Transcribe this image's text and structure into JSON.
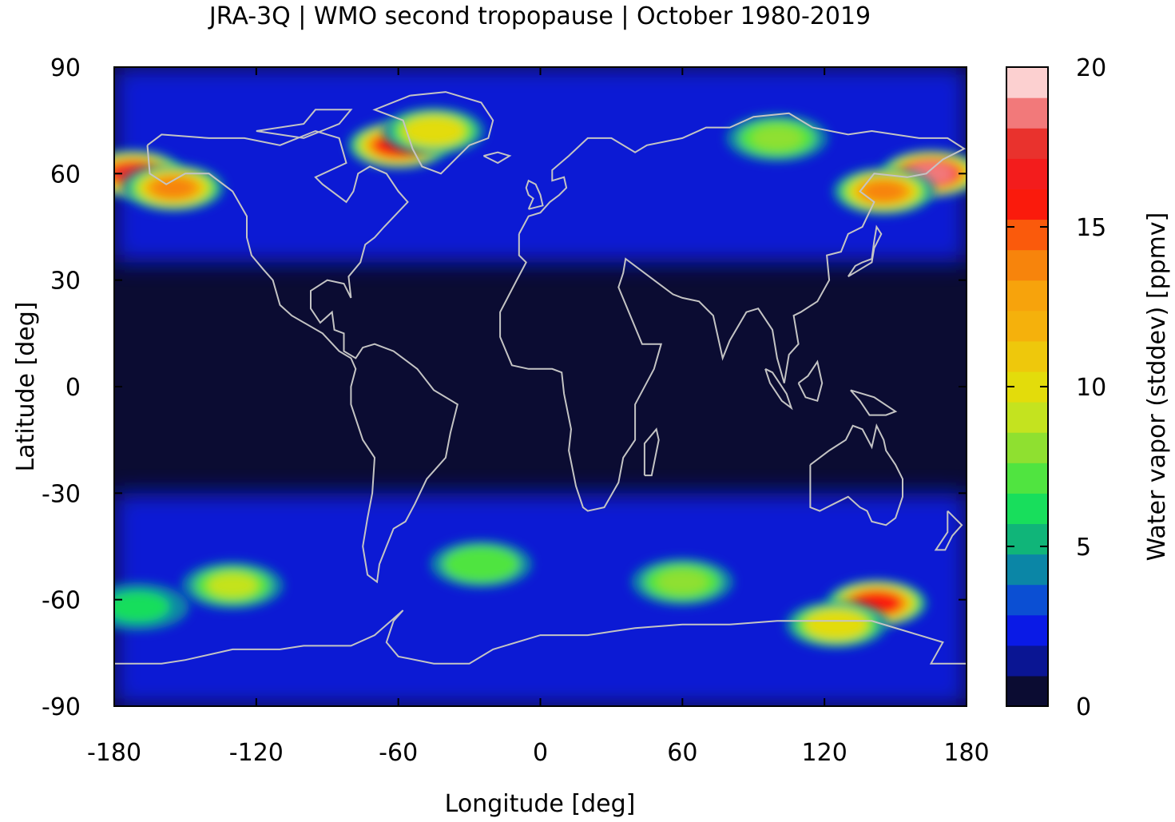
{
  "chart_data": {
    "type": "heatmap",
    "title": "JRA-3Q | WMO second tropopause | October 1980-2019",
    "xlabel": "Longitude [deg]",
    "ylabel": "Latitude [deg]",
    "xlim": [
      -180,
      180
    ],
    "ylim": [
      -90,
      90
    ],
    "x_ticks": [
      -180,
      -120,
      -60,
      0,
      60,
      120,
      180
    ],
    "y_ticks": [
      -90,
      -60,
      -30,
      0,
      30,
      60,
      90
    ],
    "x_tick_labels": [
      "-180",
      "-120",
      "-60",
      "0",
      "60",
      "120",
      "180"
    ],
    "y_tick_labels": [
      "-90",
      "-60",
      "-30",
      "0",
      "30",
      "60",
      "90"
    ],
    "colorbar": {
      "label": "Water vapor (stddev) [ppmv]",
      "range": [
        0,
        20
      ],
      "ticks": [
        0,
        5,
        10,
        15,
        20
      ],
      "tick_labels": [
        "0",
        "5",
        "10",
        "15",
        "20"
      ],
      "colors": [
        "#0b0c32",
        "#0a1593",
        "#0a1ae6",
        "#0b4fd3",
        "#0b86a6",
        "#10b579",
        "#18de5c",
        "#50e440",
        "#8fe030",
        "#c4e31f",
        "#e3dc0b",
        "#eec80c",
        "#f5b10c",
        "#f7a30c",
        "#f7840c",
        "#fa5a0c",
        "#fa1a0c",
        "#f31c1c",
        "#e9322d",
        "#f2797a",
        "#fcd0d0"
      ]
    },
    "features": {
      "background_value": 0.3,
      "band_value": 2,
      "hotspots": [
        {
          "lon": -172,
          "lat": 60,
          "value": 18
        },
        {
          "lon": -155,
          "lat": 56,
          "value": 14
        },
        {
          "lon": -60,
          "lat": 68,
          "value": 16
        },
        {
          "lon": -45,
          "lat": 72,
          "value": 10
        },
        {
          "lon": 165,
          "lat": 60,
          "value": 19
        },
        {
          "lon": 145,
          "lat": 55,
          "value": 14
        },
        {
          "lon": 100,
          "lat": 70,
          "value": 8
        },
        {
          "lon": 142,
          "lat": -61,
          "value": 16
        },
        {
          "lon": 125,
          "lat": -67,
          "value": 10
        },
        {
          "lon": -130,
          "lat": -56,
          "value": 9
        },
        {
          "lon": -25,
          "lat": -50,
          "value": 7
        },
        {
          "lon": 60,
          "lat": -55,
          "value": 8
        },
        {
          "lon": -170,
          "lat": -62,
          "value": 6
        }
      ]
    },
    "coastlines": [
      {
        "name": "americas",
        "points": [
          [
            -166,
            68
          ],
          [
            -160,
            71
          ],
          [
            -140,
            70
          ],
          [
            -125,
            70
          ],
          [
            -110,
            68
          ],
          [
            -95,
            72
          ],
          [
            -85,
            70
          ],
          [
            -82,
            63
          ],
          [
            -95,
            59
          ],
          [
            -92,
            57
          ],
          [
            -82,
            52
          ],
          [
            -79,
            55
          ],
          [
            -77,
            60
          ],
          [
            -72,
            62
          ],
          [
            -65,
            60
          ],
          [
            -60,
            55
          ],
          [
            -56,
            52
          ],
          [
            -66,
            45
          ],
          [
            -70,
            42
          ],
          [
            -74,
            40
          ],
          [
            -76,
            35
          ],
          [
            -81,
            31
          ],
          [
            -80,
            25
          ],
          [
            -83,
            29
          ],
          [
            -90,
            30
          ],
          [
            -97,
            27
          ],
          [
            -97,
            22
          ],
          [
            -93,
            18
          ],
          [
            -88,
            21
          ],
          [
            -87,
            16
          ],
          [
            -83,
            15
          ],
          [
            -83,
            10
          ],
          [
            -78,
            8
          ],
          [
            -75,
            11
          ],
          [
            -70,
            12
          ],
          [
            -62,
            10
          ],
          [
            -52,
            5
          ],
          [
            -45,
            -1
          ],
          [
            -35,
            -5
          ],
          [
            -38,
            -13
          ],
          [
            -40,
            -20
          ],
          [
            -48,
            -26
          ],
          [
            -53,
            -33
          ],
          [
            -57,
            -38
          ],
          [
            -62,
            -40
          ],
          [
            -65,
            -45
          ],
          [
            -68,
            -50
          ],
          [
            -69,
            -55
          ],
          [
            -73,
            -53
          ],
          [
            -75,
            -45
          ],
          [
            -73,
            -37
          ],
          [
            -71,
            -30
          ],
          [
            -70,
            -20
          ],
          [
            -75,
            -15
          ],
          [
            -80,
            -5
          ],
          [
            -80,
            0
          ],
          [
            -78,
            5
          ],
          [
            -80,
            8
          ],
          [
            -85,
            10
          ],
          [
            -92,
            15
          ],
          [
            -105,
            20
          ],
          [
            -110,
            23
          ],
          [
            -113,
            30
          ],
          [
            -117,
            33
          ],
          [
            -122,
            37
          ],
          [
            -124,
            42
          ],
          [
            -124,
            48
          ],
          [
            -130,
            55
          ],
          [
            -140,
            60
          ],
          [
            -150,
            60
          ],
          [
            -158,
            57
          ],
          [
            -165,
            60
          ],
          [
            -166,
            68
          ]
        ]
      },
      {
        "name": "greenland",
        "points": [
          [
            -55,
            82
          ],
          [
            -40,
            83
          ],
          [
            -25,
            80
          ],
          [
            -20,
            75
          ],
          [
            -22,
            70
          ],
          [
            -30,
            68
          ],
          [
            -42,
            60
          ],
          [
            -50,
            62
          ],
          [
            -54,
            67
          ],
          [
            -58,
            75
          ],
          [
            -70,
            78
          ],
          [
            -55,
            82
          ]
        ]
      },
      {
        "name": "afro-eurasia",
        "points": [
          [
            -9,
            43
          ],
          [
            -9,
            37
          ],
          [
            -6,
            35
          ],
          [
            -10,
            30
          ],
          [
            -17,
            21
          ],
          [
            -17,
            14
          ],
          [
            -12,
            6
          ],
          [
            -5,
            5
          ],
          [
            5,
            5
          ],
          [
            9,
            4
          ],
          [
            10,
            -2
          ],
          [
            13,
            -12
          ],
          [
            12,
            -18
          ],
          [
            15,
            -28
          ],
          [
            18,
            -34
          ],
          [
            20,
            -35
          ],
          [
            27,
            -34
          ],
          [
            33,
            -27
          ],
          [
            35,
            -20
          ],
          [
            40,
            -15
          ],
          [
            40,
            -5
          ],
          [
            48,
            5
          ],
          [
            51,
            12
          ],
          [
            43,
            12
          ],
          [
            38,
            20
          ],
          [
            33,
            28
          ],
          [
            35,
            32
          ],
          [
            36,
            36
          ],
          [
            48,
            30
          ],
          [
            56,
            26
          ],
          [
            60,
            25
          ],
          [
            67,
            24
          ],
          [
            73,
            20
          ],
          [
            77,
            8
          ],
          [
            80,
            13
          ],
          [
            87,
            21
          ],
          [
            92,
            22
          ],
          [
            98,
            16
          ],
          [
            100,
            8
          ],
          [
            103,
            1
          ],
          [
            105,
            9
          ],
          [
            109,
            12
          ],
          [
            107,
            20
          ],
          [
            110,
            21
          ],
          [
            117,
            24
          ],
          [
            122,
            30
          ],
          [
            121,
            37
          ],
          [
            127,
            38
          ],
          [
            130,
            43
          ],
          [
            136,
            45
          ],
          [
            141,
            52
          ],
          [
            135,
            55
          ],
          [
            141,
            60
          ],
          [
            155,
            59
          ],
          [
            163,
            60
          ],
          [
            170,
            64
          ],
          [
            179,
            67
          ],
          [
            172,
            70
          ],
          [
            160,
            70
          ],
          [
            140,
            72
          ],
          [
            130,
            71
          ],
          [
            115,
            73
          ],
          [
            105,
            77
          ],
          [
            90,
            76
          ],
          [
            80,
            73
          ],
          [
            70,
            73
          ],
          [
            60,
            70
          ],
          [
            45,
            68
          ],
          [
            40,
            66
          ],
          [
            30,
            70
          ],
          [
            20,
            70
          ],
          [
            12,
            65
          ],
          [
            5,
            61
          ],
          [
            5,
            58
          ],
          [
            10,
            59
          ],
          [
            11,
            56
          ],
          [
            8,
            54
          ],
          [
            4,
            52
          ],
          [
            0,
            49
          ],
          [
            -5,
            48
          ],
          [
            -9,
            43
          ]
        ]
      },
      {
        "name": "australia",
        "points": [
          [
            114,
            -22
          ],
          [
            114,
            -34
          ],
          [
            118,
            -35
          ],
          [
            124,
            -33
          ],
          [
            130,
            -31
          ],
          [
            135,
            -34
          ],
          [
            138,
            -35
          ],
          [
            140,
            -38
          ],
          [
            146,
            -39
          ],
          [
            150,
            -37
          ],
          [
            153,
            -31
          ],
          [
            153,
            -26
          ],
          [
            150,
            -22
          ],
          [
            146,
            -18
          ],
          [
            145,
            -15
          ],
          [
            142,
            -11
          ],
          [
            140,
            -17
          ],
          [
            136,
            -12
          ],
          [
            132,
            -11
          ],
          [
            129,
            -15
          ],
          [
            122,
            -18
          ],
          [
            114,
            -22
          ]
        ]
      },
      {
        "name": "antarctica",
        "points": [
          [
            -180,
            -78
          ],
          [
            -160,
            -78
          ],
          [
            -150,
            -77
          ],
          [
            -130,
            -74
          ],
          [
            -110,
            -74
          ],
          [
            -100,
            -73
          ],
          [
            -80,
            -73
          ],
          [
            -70,
            -70
          ],
          [
            -58,
            -63
          ],
          [
            -62,
            -66
          ],
          [
            -65,
            -72
          ],
          [
            -60,
            -76
          ],
          [
            -45,
            -78
          ],
          [
            -30,
            -78
          ],
          [
            -20,
            -74
          ],
          [
            0,
            -70
          ],
          [
            20,
            -70
          ],
          [
            40,
            -68
          ],
          [
            60,
            -67
          ],
          [
            80,
            -67
          ],
          [
            100,
            -66
          ],
          [
            120,
            -66
          ],
          [
            140,
            -66
          ],
          [
            160,
            -70
          ],
          [
            170,
            -72
          ],
          [
            165,
            -78
          ],
          [
            180,
            -78
          ]
        ]
      },
      {
        "name": "britain",
        "points": [
          [
            -5,
            50
          ],
          [
            1,
            51
          ],
          [
            0,
            54
          ],
          [
            -2,
            57
          ],
          [
            -5,
            58
          ],
          [
            -6,
            56
          ],
          [
            -5,
            54
          ],
          [
            -3,
            53
          ],
          [
            -5,
            50
          ]
        ]
      },
      {
        "name": "madagascar",
        "points": [
          [
            44,
            -25
          ],
          [
            47,
            -25
          ],
          [
            50,
            -15
          ],
          [
            49,
            -12
          ],
          [
            44,
            -16
          ],
          [
            44,
            -25
          ]
        ]
      },
      {
        "name": "japan",
        "points": [
          [
            130,
            31
          ],
          [
            133,
            34
          ],
          [
            136,
            35
          ],
          [
            140,
            36
          ],
          [
            141,
            41
          ],
          [
            142,
            45
          ],
          [
            144,
            43
          ],
          [
            141,
            39
          ],
          [
            140,
            35
          ],
          [
            135,
            33
          ],
          [
            130,
            31
          ]
        ]
      },
      {
        "name": "new-guinea",
        "points": [
          [
            131,
            -1
          ],
          [
            141,
            -3
          ],
          [
            150,
            -7
          ],
          [
            146,
            -8
          ],
          [
            139,
            -8
          ],
          [
            135,
            -4
          ],
          [
            131,
            -1
          ]
        ]
      },
      {
        "name": "borneo",
        "points": [
          [
            109,
            1
          ],
          [
            112,
            -3
          ],
          [
            117,
            -4
          ],
          [
            119,
            1
          ],
          [
            117,
            7
          ],
          [
            113,
            3
          ],
          [
            109,
            1
          ]
        ]
      },
      {
        "name": "sumatra",
        "points": [
          [
            95,
            5
          ],
          [
            98,
            4
          ],
          [
            104,
            -2
          ],
          [
            106,
            -6
          ],
          [
            102,
            -4
          ],
          [
            97,
            1
          ],
          [
            95,
            5
          ]
        ]
      },
      {
        "name": "new-zealand",
        "points": [
          [
            172,
            -35
          ],
          [
            175,
            -37
          ],
          [
            178,
            -39
          ],
          [
            174,
            -42
          ],
          [
            171,
            -46
          ],
          [
            167,
            -46
          ],
          [
            172,
            -41
          ],
          [
            172,
            -35
          ]
        ]
      },
      {
        "name": "iceland",
        "points": [
          [
            -24,
            65
          ],
          [
            -18,
            66
          ],
          [
            -13,
            65
          ],
          [
            -18,
            63
          ],
          [
            -24,
            65
          ]
        ]
      },
      {
        "name": "arctic-islands",
        "points": [
          [
            -120,
            72
          ],
          [
            -100,
            74
          ],
          [
            -95,
            78
          ],
          [
            -80,
            78
          ],
          [
            -85,
            74
          ],
          [
            -100,
            70
          ],
          [
            -120,
            72
          ]
        ]
      }
    ]
  }
}
